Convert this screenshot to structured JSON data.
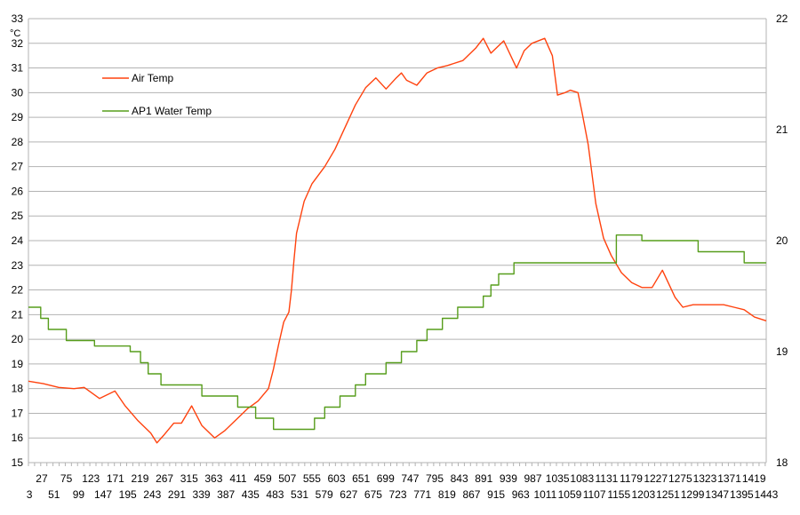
{
  "chart_data": {
    "type": "line",
    "title": "",
    "xlabel": "",
    "ylabel": "°C",
    "ylabel_right": "",
    "grid": true,
    "legend_placement": "top-left",
    "xlim": [
      1,
      1443
    ],
    "ylim": [
      15,
      33
    ],
    "ylim_right": [
      18,
      22
    ],
    "y_ticks": [
      15,
      16,
      17,
      18,
      19,
      20,
      21,
      22,
      23,
      24,
      25,
      26,
      27,
      28,
      29,
      30,
      31,
      32,
      33
    ],
    "y_right_ticks": [
      18,
      19,
      20,
      21,
      22
    ],
    "x_tick_labels_upper": [
      "27",
      "75",
      "123",
      "171",
      "219",
      "267",
      "315",
      "363",
      "411",
      "459",
      "507",
      "555",
      "603",
      "651",
      "699",
      "747",
      "795",
      "843",
      "891",
      "939",
      "987",
      "1035",
      "1083",
      "1131",
      "1179",
      "1227",
      "1275",
      "1323",
      "1371",
      "1419"
    ],
    "x_tick_labels_lower": [
      "3",
      "51",
      "99",
      "147",
      "195",
      "243",
      "291",
      "339",
      "387",
      "435",
      "483",
      "531",
      "579",
      "627",
      "675",
      "723",
      "771",
      "819",
      "867",
      "915",
      "963",
      "1011",
      "1059",
      "1107",
      "1155",
      "1203",
      "1251",
      "1299",
      "1347",
      "1395",
      "1443"
    ],
    "series": [
      {
        "name": "Air Temp",
        "axis": "left",
        "color": "#ff420e",
        "x": [
          1,
          30,
          60,
          90,
          110,
          140,
          170,
          190,
          215,
          240,
          252,
          265,
          285,
          300,
          320,
          340,
          365,
          385,
          410,
          430,
          450,
          470,
          480,
          490,
          500,
          510,
          515,
          520,
          525,
          540,
          555,
          580,
          600,
          620,
          640,
          660,
          680,
          700,
          720,
          730,
          740,
          760,
          780,
          800,
          820,
          850,
          875,
          890,
          905,
          930,
          955,
          970,
          985,
          1010,
          1025,
          1035,
          1050,
          1060,
          1075,
          1083,
          1095,
          1110,
          1125,
          1140,
          1160,
          1180,
          1200,
          1220,
          1240,
          1265,
          1280,
          1300,
          1320,
          1340,
          1360,
          1380,
          1400,
          1420,
          1443
        ],
        "values": [
          18.3,
          18.2,
          18.05,
          18.0,
          18.05,
          17.6,
          17.9,
          17.3,
          16.7,
          16.2,
          15.8,
          16.1,
          16.6,
          16.6,
          17.3,
          16.5,
          16.0,
          16.3,
          16.8,
          17.2,
          17.5,
          18.0,
          18.8,
          19.8,
          20.7,
          21.1,
          22.0,
          23.2,
          24.3,
          25.6,
          26.3,
          27.0,
          27.7,
          28.6,
          29.5,
          30.2,
          30.6,
          30.15,
          30.6,
          30.8,
          30.5,
          30.3,
          30.8,
          31.0,
          31.1,
          31.3,
          31.8,
          32.2,
          31.6,
          32.1,
          31.0,
          31.7,
          32.0,
          32.2,
          31.5,
          29.9,
          30.0,
          30.1,
          30.0,
          29.2,
          27.9,
          25.5,
          24.1,
          23.4,
          22.7,
          22.3,
          22.1,
          22.1,
          22.8,
          21.7,
          21.3,
          21.4,
          21.4,
          21.4,
          21.4,
          21.3,
          21.2,
          20.9,
          20.75
        ]
      },
      {
        "name": "AP1 Water Temp",
        "axis": "right",
        "color": "#579d1c",
        "steps": [
          [
            1,
            19.4
          ],
          [
            25,
            19.3
          ],
          [
            40,
            19.2
          ],
          [
            75,
            19.1
          ],
          [
            130,
            19.05
          ],
          [
            200,
            19.0
          ],
          [
            220,
            18.9
          ],
          [
            235,
            18.8
          ],
          [
            260,
            18.7
          ],
          [
            340,
            18.6
          ],
          [
            410,
            18.5
          ],
          [
            445,
            18.4
          ],
          [
            480,
            18.3
          ],
          [
            560,
            18.4
          ],
          [
            580,
            18.5
          ],
          [
            610,
            18.6
          ],
          [
            640,
            18.7
          ],
          [
            660,
            18.8
          ],
          [
            700,
            18.9
          ],
          [
            730,
            19.0
          ],
          [
            760,
            19.1
          ],
          [
            780,
            19.2
          ],
          [
            810,
            19.3
          ],
          [
            840,
            19.4
          ],
          [
            890,
            19.5
          ],
          [
            905,
            19.6
          ],
          [
            920,
            19.7
          ],
          [
            950,
            19.8
          ],
          [
            1040,
            19.8
          ],
          [
            1150,
            20.05
          ],
          [
            1200,
            20.0
          ],
          [
            1310,
            19.9
          ],
          [
            1400,
            19.8
          ],
          [
            1443,
            19.8
          ]
        ]
      }
    ]
  },
  "legend": {
    "air_temp": "Air Temp",
    "water_temp": "AP1 Water Temp"
  }
}
